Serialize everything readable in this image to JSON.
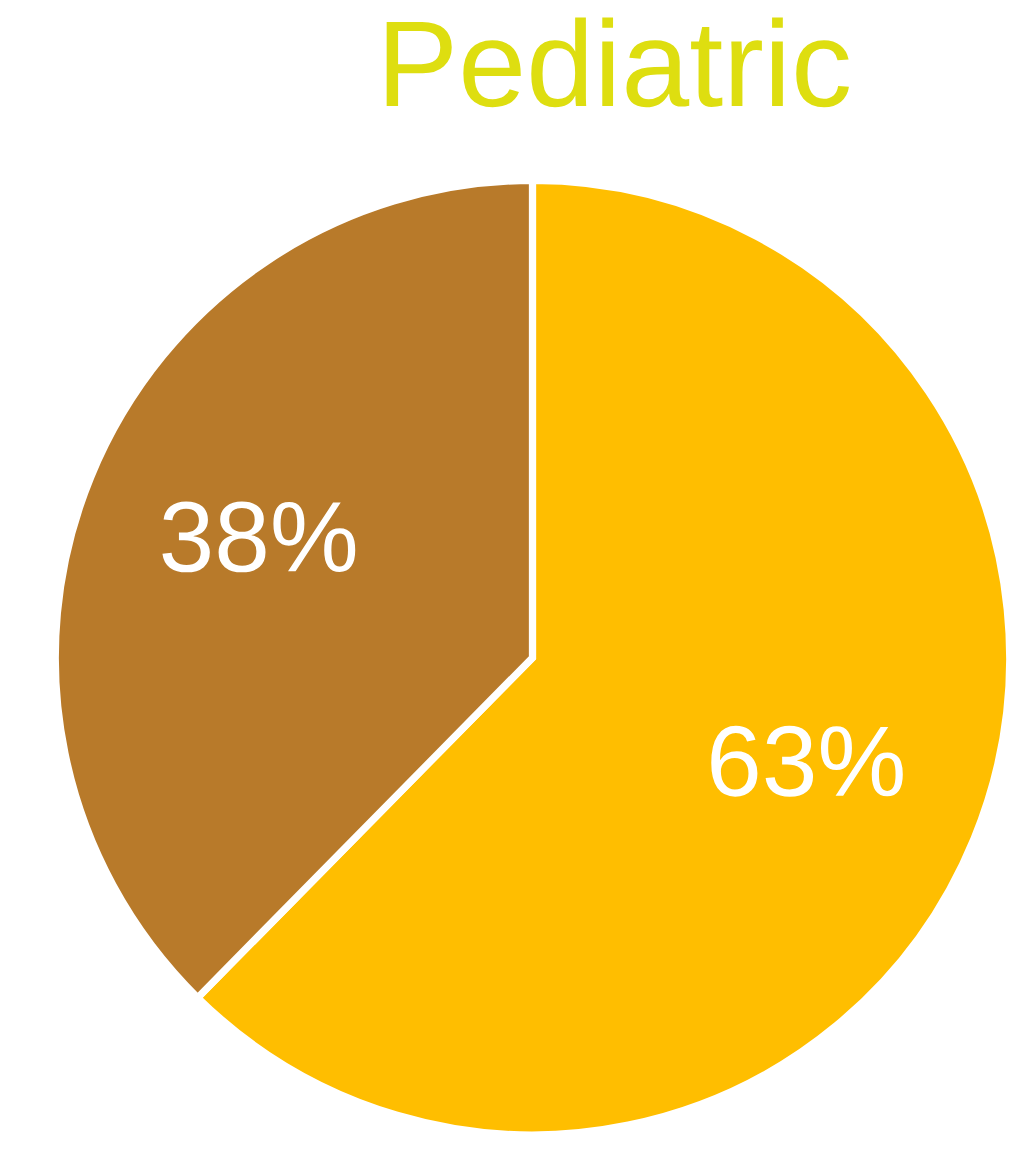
{
  "chart_data": {
    "type": "pie",
    "title": "Pediatric",
    "categories": [
      null,
      null
    ],
    "values": [
      63,
      38
    ],
    "colors": [
      "#ffbe00",
      "#b87a2a"
    ],
    "value_labels": [
      "63%",
      "38%"
    ]
  }
}
